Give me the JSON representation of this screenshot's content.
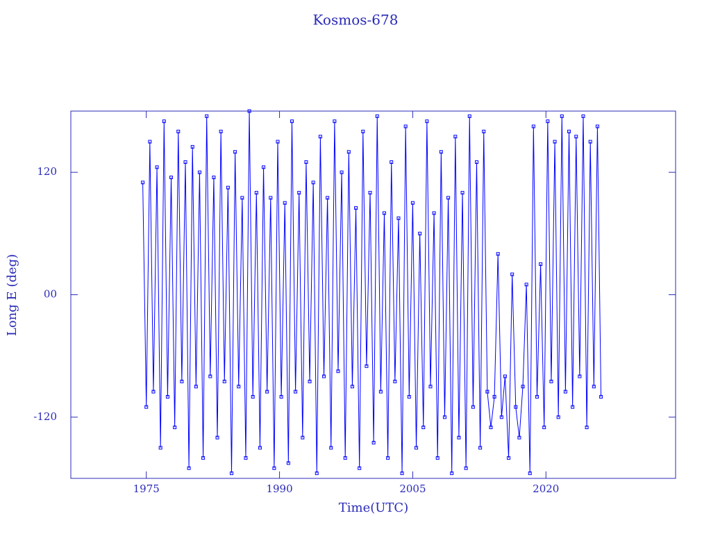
{
  "chart_data": {
    "type": "line",
    "title": "Kosmos-678",
    "x_label": "Time(UTC)",
    "y_label": "Long E (deg)",
    "color": "#0000ff",
    "xlim": [
      1966.5,
      2034.6
    ],
    "ylim": [
      -180,
      180
    ],
    "xticks": [
      1975,
      1990,
      2005,
      2020
    ],
    "yticks": [
      {
        "value": 120,
        "label": "120"
      },
      {
        "value": 0,
        "label": "00"
      },
      {
        "value": -120,
        "label": "-120"
      }
    ],
    "x": [
      1974.6,
      1975.0,
      1975.4,
      1975.8,
      1976.2,
      1976.6,
      1977.0,
      1977.4,
      1977.8,
      1978.2,
      1978.6,
      1979.0,
      1979.4,
      1979.8,
      1980.2,
      1980.6,
      1981.0,
      1981.4,
      1981.8,
      1982.2,
      1982.6,
      1983.0,
      1983.4,
      1983.8,
      1984.2,
      1984.6,
      1985.0,
      1985.4,
      1985.8,
      1986.2,
      1986.6,
      1987.0,
      1987.4,
      1987.8,
      1988.2,
      1988.6,
      1989.0,
      1989.4,
      1989.8,
      1990.2,
      1990.6,
      1991.0,
      1991.4,
      1991.8,
      1992.2,
      1992.6,
      1993.0,
      1993.4,
      1993.8,
      1994.2,
      1994.6,
      1995.0,
      1995.4,
      1995.8,
      1996.2,
      1996.6,
      1997.0,
      1997.4,
      1997.8,
      1998.2,
      1998.6,
      1999.0,
      1999.4,
      1999.8,
      2000.2,
      2000.6,
      2001.0,
      2001.4,
      2001.8,
      2002.2,
      2002.6,
      2003.0,
      2003.4,
      2003.8,
      2004.2,
      2004.6,
      2005.0,
      2005.4,
      2005.8,
      2006.2,
      2006.6,
      2007.0,
      2007.4,
      2007.8,
      2008.2,
      2008.6,
      2009.0,
      2009.4,
      2009.8,
      2010.2,
      2010.6,
      2011.0,
      2011.4,
      2011.8,
      2012.2,
      2012.6,
      2013.0,
      2013.4,
      2013.8,
      2014.2,
      2014.6,
      2015.0,
      2015.4,
      2015.8,
      2016.2,
      2016.6,
      2017.0,
      2017.4,
      2017.8,
      2018.2,
      2018.6,
      2019.0,
      2019.4,
      2019.8,
      2020.2,
      2020.6,
      2021.0,
      2021.4,
      2021.8,
      2022.2,
      2022.6,
      2023.0,
      2023.4,
      2023.8,
      2024.2,
      2024.6,
      2025.0,
      2025.4,
      2025.8,
      2026.2
    ],
    "values": [
      110,
      -110,
      150,
      -95,
      125,
      -150,
      170,
      -100,
      115,
      -130,
      160,
      -85,
      130,
      -170,
      145,
      -90,
      120,
      -160,
      175,
      -80,
      115,
      -140,
      160,
      -85,
      105,
      -175,
      140,
      -90,
      95,
      -160,
      180,
      -100,
      100,
      -150,
      125,
      -95,
      95,
      -170,
      150,
      -100,
      90,
      -165,
      170,
      -95,
      100,
      -140,
      130,
      -85,
      110,
      -175,
      155,
      -80,
      95,
      -150,
      170,
      -75,
      120,
      -160,
      140,
      -90,
      85,
      -170,
      160,
      -70,
      100,
      -145,
      175,
      -95,
      80,
      -160,
      130,
      -85,
      75,
      -175,
      165,
      -100,
      90,
      -150,
      60,
      -130,
      170,
      -90,
      80,
      -160,
      140,
      -120,
      95,
      -175,
      155,
      -140,
      100,
      -170,
      175,
      -110,
      130,
      -150,
      160,
      -95,
      -130,
      -100,
      40,
      -120,
      -80,
      -160,
      20,
      -110,
      -140,
      -90,
      10,
      -175,
      165,
      -100,
      30,
      -130,
      170,
      -85,
      150,
      -120,
      175,
      -95,
      160,
      -110,
      155,
      -80,
      175,
      -130,
      150,
      -90,
      165,
      -100
    ]
  }
}
